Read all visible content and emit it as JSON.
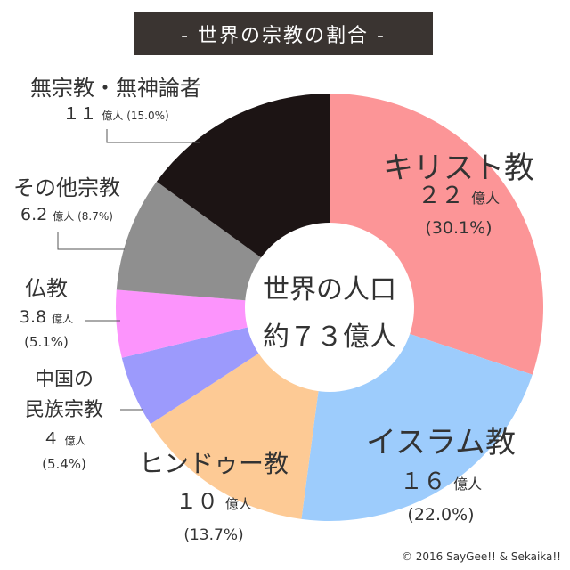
{
  "title_bar": {
    "text": "- 世界の宗教の割合 -"
  },
  "center_label": {
    "line1": "世界の人口",
    "line2": "約７３億人"
  },
  "credit": "© 2016 SayGee!! & Sekaika!!",
  "chart_data": {
    "type": "pie",
    "title": "- 世界の宗教の割合 -",
    "total_label": "約７３億人",
    "slices": [
      {
        "name": "キリスト教",
        "value_label": "２２",
        "unit": "億人",
        "percent_label": "(30.1%)",
        "percent": 30.1,
        "color": "#fc9597"
      },
      {
        "name": "イスラム教",
        "value_label": "１６",
        "unit": "億人",
        "percent_label": "(22.0%)",
        "percent": 22.0,
        "color": "#9dccfc"
      },
      {
        "name": "ヒンドゥー教",
        "value_label": "１０",
        "unit": "億人",
        "percent_label": "(13.7%)",
        "percent": 13.7,
        "color": "#fdca95"
      },
      {
        "name": "中国の民族宗教",
        "name_lines": [
          "中国の",
          "民族宗教"
        ],
        "value_label": "４",
        "unit": "億人",
        "percent_label": "(5.4%)",
        "percent": 5.4,
        "color": "#9c9afc"
      },
      {
        "name": "仏教",
        "value_label": "3.8",
        "unit": "億人",
        "percent_label": "(5.1%)",
        "percent": 5.1,
        "color": "#fc94fc"
      },
      {
        "name": "その他宗教",
        "value_label": "6.2",
        "unit": "億人",
        "percent_label": "(8.7%)",
        "percent": 8.7,
        "color": "#8f8f8f"
      },
      {
        "name": "無宗教・無神論者",
        "value_label": "１１",
        "unit": "億人",
        "percent_label": "(15.0%)",
        "percent": 15.0,
        "color": "#1c1414"
      }
    ]
  }
}
